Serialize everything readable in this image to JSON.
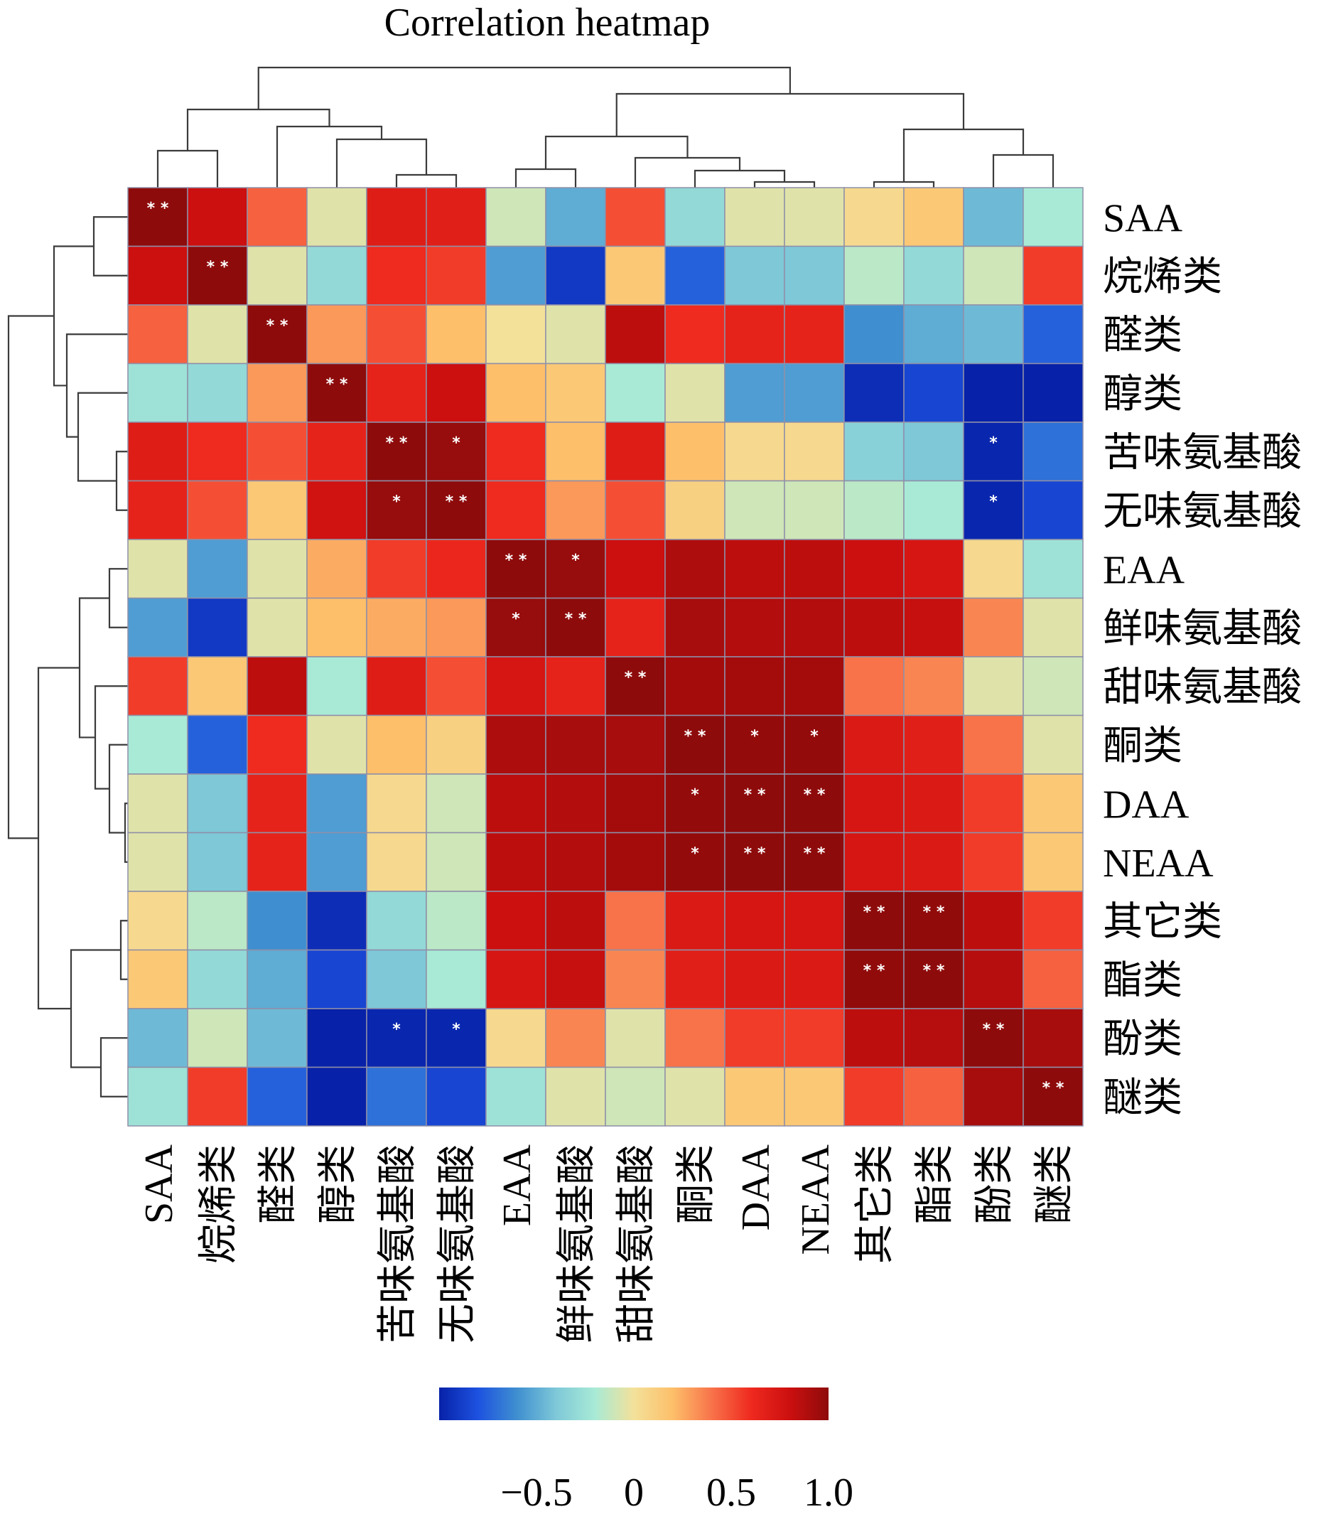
{
  "chart_data": {
    "type": "heatmap",
    "title": "Correlation heatmap",
    "rows": [
      "SAA",
      "烷烯类",
      "醛类",
      "醇类",
      "苦味氨基酸",
      "无味氨基酸",
      "EAA",
      "鲜味氨基酸",
      "甜味氨基酸",
      "酮类",
      "DAA",
      "NEAA",
      "其它类",
      "酯类",
      "酚类",
      "醚类"
    ],
    "columns": [
      "SAA",
      "烷烯类",
      "醛类",
      "醇类",
      "苦味氨基酸",
      "无味氨基酸",
      "EAA",
      "鲜味氨基酸",
      "甜味氨基酸",
      "酮类",
      "DAA",
      "NEAA",
      "其它类",
      "酯类",
      "酚类",
      "醚类"
    ],
    "values": [
      [
        1.0,
        0.8,
        0.45,
        -0.05,
        0.7,
        0.68,
        -0.1,
        -0.5,
        0.5,
        -0.3,
        -0.05,
        -0.05,
        0.05,
        0.15,
        -0.45,
        -0.2
      ],
      [
        0.8,
        1.0,
        -0.05,
        -0.3,
        0.6,
        0.55,
        -0.55,
        -0.9,
        0.15,
        -0.75,
        -0.4,
        -0.4,
        -0.15,
        -0.3,
        -0.1,
        0.55
      ],
      [
        0.45,
        -0.05,
        1.0,
        0.3,
        0.5,
        0.2,
        0.0,
        -0.05,
        0.85,
        0.6,
        0.65,
        0.65,
        -0.6,
        -0.5,
        -0.45,
        -0.75
      ],
      [
        -0.25,
        -0.3,
        0.3,
        1.0,
        0.65,
        0.8,
        0.2,
        0.15,
        -0.2,
        -0.05,
        -0.55,
        -0.55,
        -0.95,
        -0.85,
        -1.0,
        -1.0
      ],
      [
        0.7,
        0.6,
        0.5,
        0.65,
        1.0,
        0.97,
        0.6,
        0.2,
        0.7,
        0.2,
        0.05,
        0.05,
        -0.35,
        -0.4,
        -0.98,
        -0.7
      ],
      [
        0.65,
        0.5,
        0.15,
        0.78,
        0.97,
        1.0,
        0.6,
        0.3,
        0.5,
        0.1,
        -0.1,
        -0.1,
        -0.15,
        -0.2,
        -0.98,
        -0.85
      ],
      [
        -0.05,
        -0.55,
        -0.05,
        0.25,
        0.55,
        0.62,
        1.0,
        0.97,
        0.8,
        0.9,
        0.85,
        0.85,
        0.8,
        0.75,
        0.05,
        -0.25
      ],
      [
        -0.55,
        -0.9,
        -0.05,
        0.2,
        0.25,
        0.3,
        0.97,
        1.0,
        0.65,
        0.92,
        0.88,
        0.88,
        0.85,
        0.82,
        0.35,
        -0.05
      ],
      [
        0.55,
        0.15,
        0.85,
        -0.2,
        0.7,
        0.5,
        0.75,
        0.65,
        1.0,
        0.93,
        0.93,
        0.93,
        0.4,
        0.35,
        -0.05,
        -0.1
      ],
      [
        -0.2,
        -0.75,
        0.6,
        -0.05,
        0.2,
        0.1,
        0.9,
        0.92,
        0.92,
        1.0,
        0.98,
        0.98,
        0.72,
        0.68,
        0.4,
        -0.05
      ],
      [
        -0.05,
        -0.4,
        0.65,
        -0.55,
        0.05,
        -0.1,
        0.85,
        0.88,
        0.93,
        0.98,
        1.0,
        1.0,
        0.75,
        0.72,
        0.55,
        0.15
      ],
      [
        -0.05,
        -0.4,
        0.65,
        -0.55,
        0.05,
        -0.1,
        0.85,
        0.88,
        0.93,
        0.98,
        1.0,
        1.0,
        0.75,
        0.72,
        0.55,
        0.15
      ],
      [
        0.05,
        -0.15,
        -0.6,
        -0.95,
        -0.3,
        -0.15,
        0.8,
        0.85,
        0.4,
        0.72,
        0.75,
        0.75,
        1.0,
        0.99,
        0.85,
        0.55
      ],
      [
        0.15,
        -0.3,
        -0.5,
        -0.85,
        -0.4,
        -0.2,
        0.75,
        0.82,
        0.35,
        0.68,
        0.72,
        0.72,
        0.99,
        1.0,
        0.87,
        0.45
      ],
      [
        -0.45,
        -0.1,
        -0.45,
        -1.0,
        -0.98,
        -0.98,
        0.05,
        0.35,
        -0.05,
        0.4,
        0.55,
        0.55,
        0.85,
        0.87,
        1.0,
        0.92
      ],
      [
        -0.25,
        0.55,
        -0.75,
        -1.0,
        -0.7,
        -0.85,
        -0.25,
        -0.05,
        -0.1,
        -0.05,
        0.15,
        0.15,
        0.55,
        0.45,
        0.92,
        1.0
      ]
    ],
    "significance": [
      [
        "**",
        "",
        "",
        "",
        "",
        "",
        "",
        "",
        "",
        "",
        "",
        "",
        "",
        "",
        "",
        ""
      ],
      [
        "",
        "**",
        "",
        "",
        "",
        "",
        "",
        "",
        "",
        "",
        "",
        "",
        "",
        "",
        "",
        ""
      ],
      [
        "",
        "",
        "**",
        "",
        "",
        "",
        "",
        "",
        "",
        "",
        "",
        "",
        "",
        "",
        "",
        ""
      ],
      [
        "",
        "",
        "",
        "**",
        "",
        "",
        "",
        "",
        "",
        "",
        "",
        "",
        "",
        "",
        "",
        ""
      ],
      [
        "",
        "",
        "",
        "",
        "**",
        "*",
        "",
        "",
        "",
        "",
        "",
        "",
        "",
        "",
        "*",
        ""
      ],
      [
        "",
        "",
        "",
        "",
        "*",
        "**",
        "",
        "",
        "",
        "",
        "",
        "",
        "",
        "",
        "*",
        ""
      ],
      [
        "",
        "",
        "",
        "",
        "",
        "",
        "**",
        "*",
        "",
        "",
        "",
        "",
        "",
        "",
        "",
        ""
      ],
      [
        "",
        "",
        "",
        "",
        "",
        "",
        "*",
        "**",
        "",
        "",
        "",
        "",
        "",
        "",
        "",
        ""
      ],
      [
        "",
        "",
        "",
        "",
        "",
        "",
        "",
        "",
        "**",
        "",
        "",
        "",
        "",
        "",
        "",
        ""
      ],
      [
        "",
        "",
        "",
        "",
        "",
        "",
        "",
        "",
        "",
        "**",
        "*",
        "*",
        "",
        "",
        "",
        ""
      ],
      [
        "",
        "",
        "",
        "",
        "",
        "",
        "",
        "",
        "",
        "*",
        "**",
        "**",
        "",
        "",
        "",
        ""
      ],
      [
        "",
        "",
        "",
        "",
        "",
        "",
        "",
        "",
        "",
        "*",
        "**",
        "**",
        "",
        "",
        "",
        ""
      ],
      [
        "",
        "",
        "",
        "",
        "",
        "",
        "",
        "",
        "",
        "",
        "",
        "",
        "**",
        "**",
        "",
        ""
      ],
      [
        "",
        "",
        "",
        "",
        "",
        "",
        "",
        "",
        "",
        "",
        "",
        "",
        "**",
        "**",
        "",
        ""
      ],
      [
        "",
        "",
        "",
        "",
        "*",
        "*",
        "",
        "",
        "",
        "",
        "",
        "",
        "",
        "",
        "**",
        ""
      ],
      [
        "",
        "",
        "",
        "",
        "",
        "",
        "",
        "",
        "",
        "",
        "",
        "",
        "",
        "",
        "",
        "**"
      ]
    ],
    "colorbar": {
      "min": -1.0,
      "max": 1.0,
      "ticks": [
        -0.5,
        0,
        0.5,
        1.0
      ],
      "tick_labels": [
        "−0.5",
        "0",
        "0.5",
        "1.0"
      ]
    },
    "colors": [
      "#0721a8",
      "#1d52e0",
      "#3f8fd0",
      "#7ec8d8",
      "#a8ead6",
      "#f3e19a",
      "#fdbf6a",
      "#f8734a",
      "#ef2a1f",
      "#cc0f0f",
      "#8e0b0b"
    ],
    "dendrogram": "both",
    "grid": true
  }
}
